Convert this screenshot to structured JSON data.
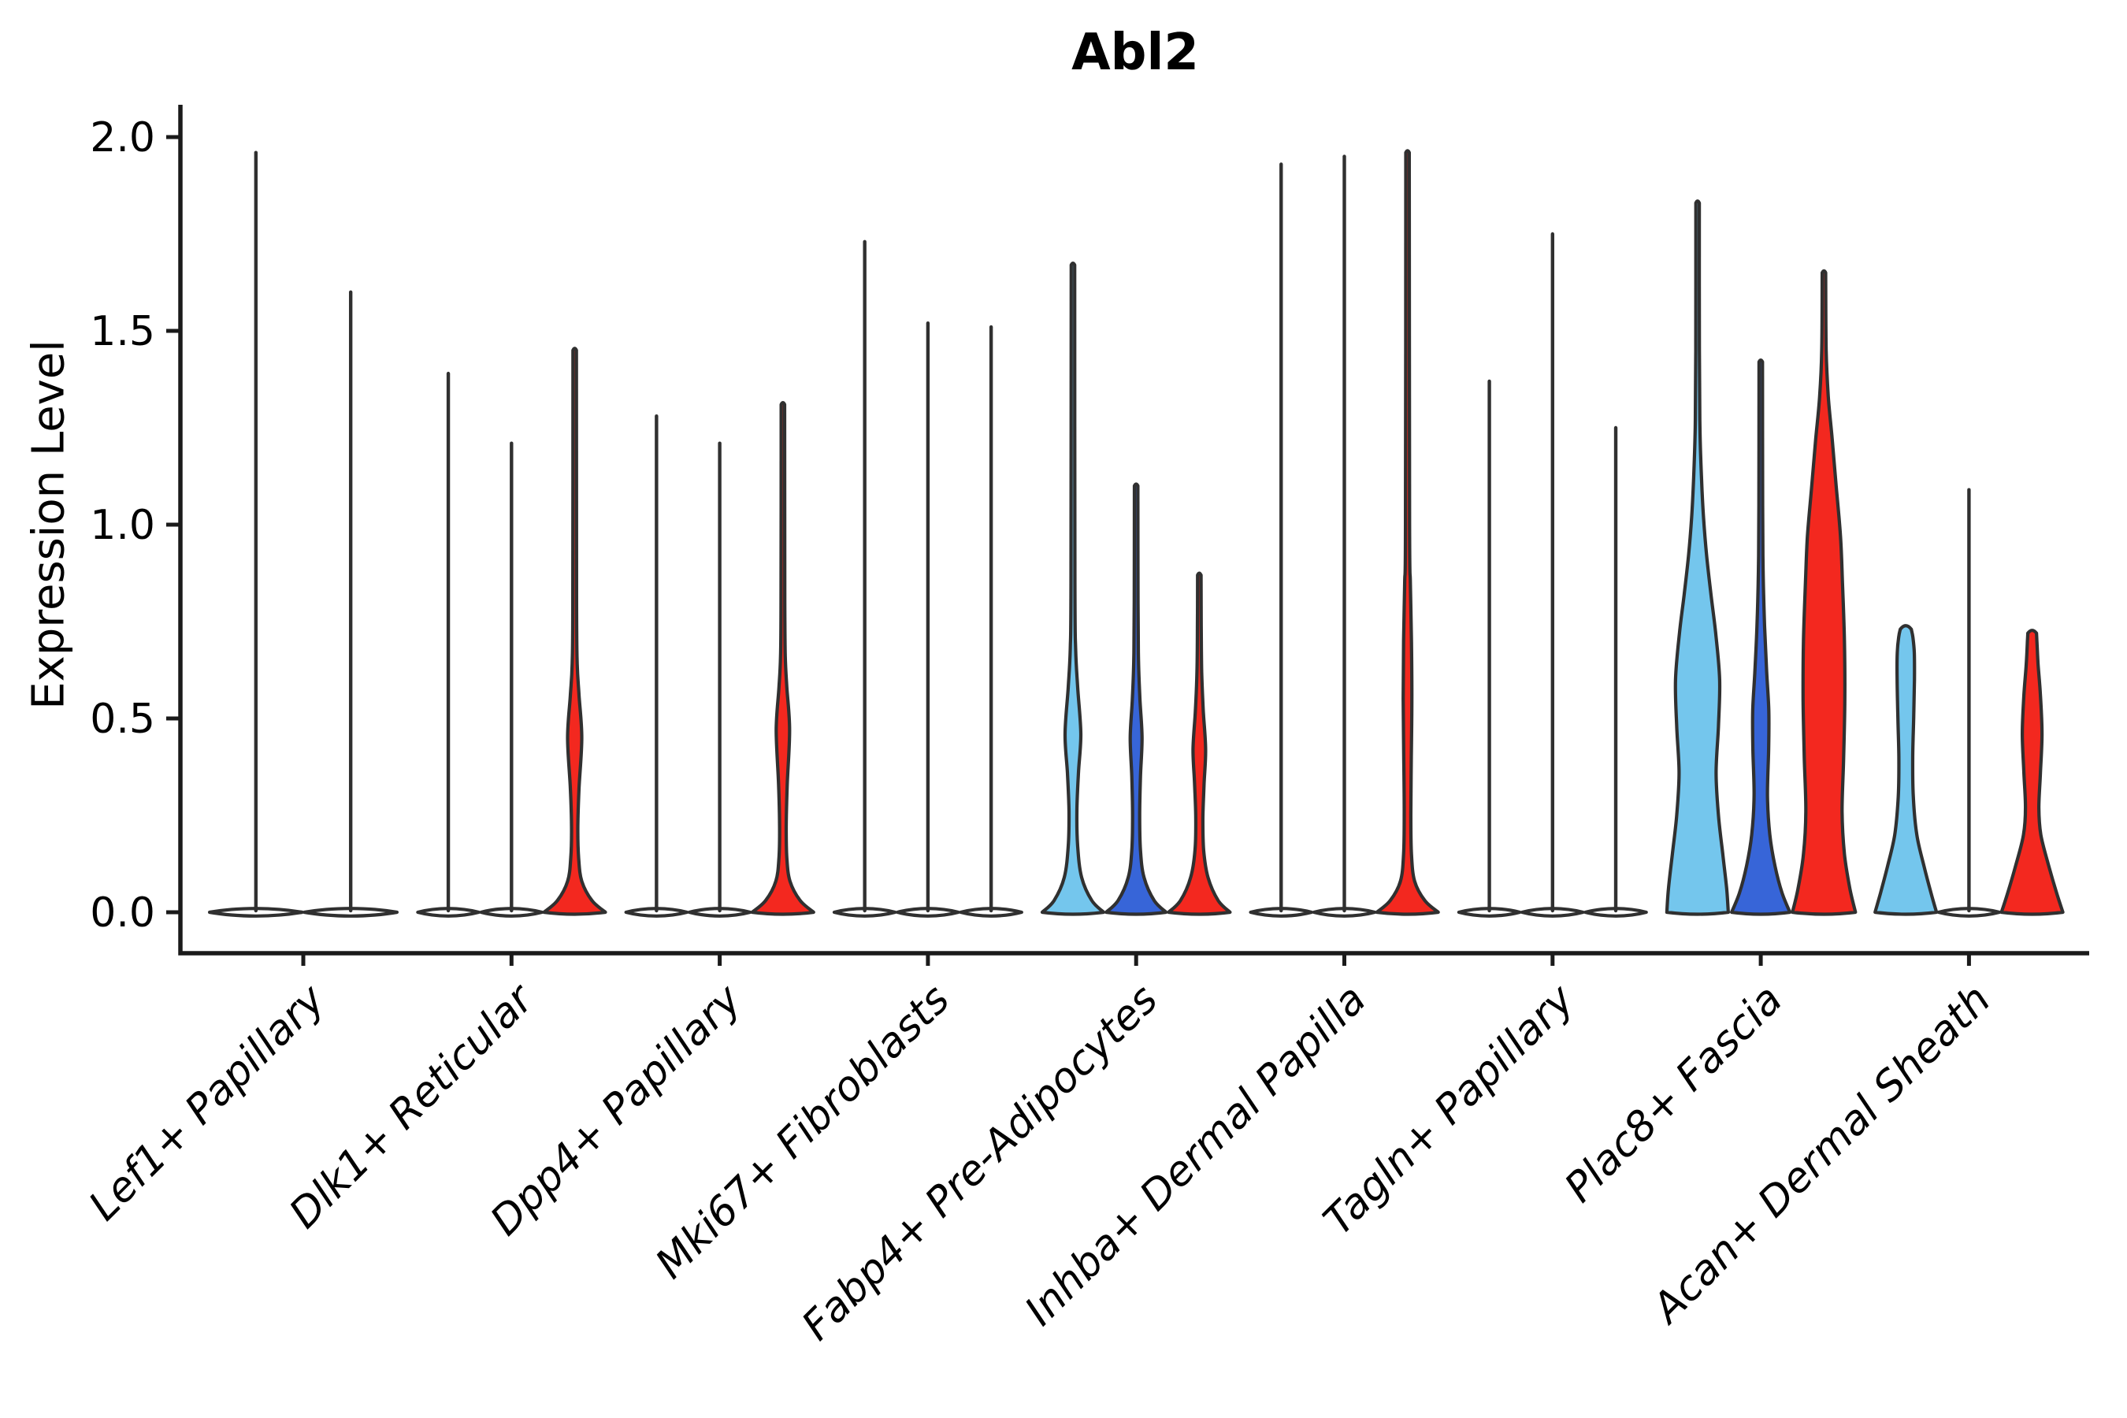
{
  "chart_data": {
    "type": "violin",
    "title": "Abl2",
    "ylabel": "Expression Level",
    "ylim": [
      0,
      2.0
    ],
    "ytick_labels": [
      "0.0",
      "0.5",
      "1.0",
      "1.5",
      "2.0"
    ],
    "ytick_values": [
      0,
      0.5,
      1.0,
      1.5,
      2.0
    ],
    "grid": "off",
    "legend": "none",
    "x_label_rotation_deg": 45,
    "x_label_style": "italic",
    "palette": {
      "lightblue": "#74C6ED",
      "darkblue": "#3765D8",
      "red": "#F3281F",
      "white": "#FFFFFF",
      "outline": "#303030",
      "axis": "#1a1a1a"
    },
    "categories": [
      "Lef1+ Papillary",
      "Dlk1+ Reticular",
      "Dpp4+ Papillary",
      "Mki67+ Fibroblasts",
      "Fabp4+ Pre-Adipocytes",
      "Inhba+ Dermal Papilla",
      "Tagln+ Papillary",
      "Plac8+ Fascia",
      "Acan+ Dermal Sheath"
    ],
    "groups": [
      {
        "category": "Lef1+ Papillary",
        "violins": [
          {
            "max": 1.96,
            "fill": "white",
            "shape": "spike"
          },
          {
            "max": 1.6,
            "fill": "white",
            "shape": "spike"
          }
        ]
      },
      {
        "category": "Dlk1+ Reticular",
        "violins": [
          {
            "max": 1.39,
            "fill": "white",
            "shape": "spike"
          },
          {
            "max": 1.21,
            "fill": "white",
            "shape": "spike"
          },
          {
            "max": 1.45,
            "fill": "red",
            "shape": "density",
            "profile": [
              [
                0,
                39
              ],
              [
                0.03,
                22
              ],
              [
                0.08,
                9
              ],
              [
                0.14,
                5
              ],
              [
                0.22,
                4
              ],
              [
                0.32,
                5.5
              ],
              [
                0.45,
                9
              ],
              [
                0.56,
                5.5
              ],
              [
                0.64,
                3.2
              ],
              [
                0.8,
                2.4
              ],
              [
                1.45,
                2.2
              ]
            ]
          }
        ]
      },
      {
        "category": "Dpp4+ Papillary",
        "violins": [
          {
            "max": 1.28,
            "fill": "white",
            "shape": "spike"
          },
          {
            "max": 1.21,
            "fill": "white",
            "shape": "spike"
          },
          {
            "max": 1.31,
            "fill": "red",
            "shape": "density",
            "profile": [
              [
                0,
                39
              ],
              [
                0.03,
                22
              ],
              [
                0.08,
                9
              ],
              [
                0.14,
                5
              ],
              [
                0.22,
                4.2
              ],
              [
                0.33,
                5.5
              ],
              [
                0.47,
                8.5
              ],
              [
                0.58,
                5
              ],
              [
                0.66,
                3
              ],
              [
                0.8,
                2.4
              ],
              [
                1.31,
                2.2
              ]
            ]
          }
        ]
      },
      {
        "category": "Mki67+ Fibroblasts",
        "violins": [
          {
            "max": 1.73,
            "fill": "white",
            "shape": "spike"
          },
          {
            "max": 1.52,
            "fill": "white",
            "shape": "spike"
          },
          {
            "max": 1.51,
            "fill": "white",
            "shape": "spike"
          }
        ]
      },
      {
        "category": "Fabp4+ Pre-Adipocytes",
        "violins": [
          {
            "max": 1.67,
            "fill": "lightblue",
            "shape": "density",
            "profile": [
              [
                0,
                39
              ],
              [
                0.03,
                24
              ],
              [
                0.09,
                11
              ],
              [
                0.17,
                6
              ],
              [
                0.26,
                5
              ],
              [
                0.36,
                7
              ],
              [
                0.46,
                10
              ],
              [
                0.58,
                6
              ],
              [
                0.68,
                3.4
              ],
              [
                0.85,
                2.5
              ],
              [
                1.67,
                2.2
              ]
            ]
          },
          {
            "max": 1.1,
            "fill": "darkblue",
            "shape": "density",
            "profile": [
              [
                0,
                38
              ],
              [
                0.03,
                23
              ],
              [
                0.09,
                10
              ],
              [
                0.16,
                5.5
              ],
              [
                0.25,
                4.5
              ],
              [
                0.35,
                5.5
              ],
              [
                0.45,
                7.5
              ],
              [
                0.55,
                4.8
              ],
              [
                0.65,
                3
              ],
              [
                0.8,
                2.4
              ],
              [
                1.1,
                2.2
              ]
            ]
          },
          {
            "max": 0.87,
            "fill": "red",
            "shape": "density",
            "profile": [
              [
                0,
                39
              ],
              [
                0.03,
                24
              ],
              [
                0.09,
                11
              ],
              [
                0.16,
                5.5
              ],
              [
                0.24,
                4.5
              ],
              [
                0.33,
                6
              ],
              [
                0.42,
                8
              ],
              [
                0.52,
                5
              ],
              [
                0.62,
                3
              ],
              [
                0.74,
                2.4
              ],
              [
                0.87,
                2.2
              ]
            ]
          }
        ]
      },
      {
        "category": "Inhba+ Dermal Papilla",
        "violins": [
          {
            "max": 1.93,
            "fill": "white",
            "shape": "spike"
          },
          {
            "max": 1.95,
            "fill": "white",
            "shape": "spike"
          },
          {
            "max": 1.96,
            "fill": "red",
            "shape": "density",
            "profile": [
              [
                0,
                39
              ],
              [
                0.03,
                22
              ],
              [
                0.08,
                9
              ],
              [
                0.15,
                5
              ],
              [
                0.25,
                4.2
              ],
              [
                0.4,
                4.8
              ],
              [
                0.55,
                5.5
              ],
              [
                0.7,
                5
              ],
              [
                0.85,
                3.6
              ],
              [
                1.0,
                2.6
              ],
              [
                1.96,
                2.2
              ]
            ]
          }
        ]
      },
      {
        "category": "Tagln+ Papillary",
        "violins": [
          {
            "max": 1.37,
            "fill": "white",
            "shape": "spike"
          },
          {
            "max": 1.75,
            "fill": "white",
            "shape": "spike"
          },
          {
            "max": 1.25,
            "fill": "white",
            "shape": "spike"
          }
        ]
      },
      {
        "category": "Plac8+ Fascia",
        "violins": [
          {
            "max": 1.83,
            "fill": "lightblue",
            "shape": "density",
            "profile": [
              [
                0,
                39
              ],
              [
                0.06,
                37
              ],
              [
                0.15,
                32
              ],
              [
                0.25,
                26.5
              ],
              [
                0.36,
                23.5
              ],
              [
                0.48,
                26.5
              ],
              [
                0.6,
                28
              ],
              [
                0.72,
                23
              ],
              [
                0.82,
                17
              ],
              [
                0.92,
                11.5
              ],
              [
                1.02,
                7.5
              ],
              [
                1.12,
                5
              ],
              [
                1.25,
                3
              ],
              [
                1.45,
                2.3
              ],
              [
                1.83,
                2.2
              ]
            ]
          },
          {
            "max": 1.42,
            "fill": "darkblue",
            "shape": "density",
            "profile": [
              [
                0,
                37
              ],
              [
                0.05,
                27
              ],
              [
                0.12,
                18
              ],
              [
                0.2,
                11.5
              ],
              [
                0.3,
                8.5
              ],
              [
                0.42,
                10
              ],
              [
                0.52,
                10.2
              ],
              [
                0.62,
                7.5
              ],
              [
                0.74,
                4.8
              ],
              [
                0.88,
                3
              ],
              [
                1.05,
                2.4
              ],
              [
                1.42,
                2.2
              ]
            ]
          },
          {
            "max": 1.65,
            "fill": "red",
            "shape": "density",
            "profile": [
              [
                0,
                40
              ],
              [
                0.06,
                33
              ],
              [
                0.15,
                26
              ],
              [
                0.26,
                23
              ],
              [
                0.4,
                25
              ],
              [
                0.55,
                26.5
              ],
              [
                0.7,
                26
              ],
              [
                0.85,
                23.5
              ],
              [
                0.97,
                21
              ],
              [
                1.1,
                15.5
              ],
              [
                1.22,
                10.5
              ],
              [
                1.33,
                5.5
              ],
              [
                1.45,
                2.8
              ],
              [
                1.65,
                2.2
              ]
            ]
          }
        ]
      },
      {
        "category": "Acan+ Dermal Sheath",
        "violins": [
          {
            "max": 0.73,
            "fill": "lightblue",
            "shape": "density",
            "blunt": true,
            "profile": [
              [
                0,
                39
              ],
              [
                0.05,
                32
              ],
              [
                0.12,
                23
              ],
              [
                0.2,
                14
              ],
              [
                0.3,
                9.5
              ],
              [
                0.4,
                8.8
              ],
              [
                0.5,
                10
              ],
              [
                0.6,
                11
              ],
              [
                0.67,
                10.8
              ],
              [
                0.71,
                9
              ],
              [
                0.73,
                7
              ]
            ]
          },
          {
            "max": 1.09,
            "fill": "white",
            "shape": "spike"
          },
          {
            "max": 0.72,
            "fill": "red",
            "shape": "density",
            "blunt": true,
            "profile": [
              [
                0,
                39
              ],
              [
                0.05,
                31
              ],
              [
                0.12,
                21
              ],
              [
                0.2,
                11
              ],
              [
                0.27,
                8.5
              ],
              [
                0.36,
                10.5
              ],
              [
                0.46,
                12.5
              ],
              [
                0.56,
                10.5
              ],
              [
                0.64,
                7.5
              ],
              [
                0.7,
                6
              ],
              [
                0.72,
                5.5
              ]
            ]
          }
        ]
      }
    ]
  }
}
